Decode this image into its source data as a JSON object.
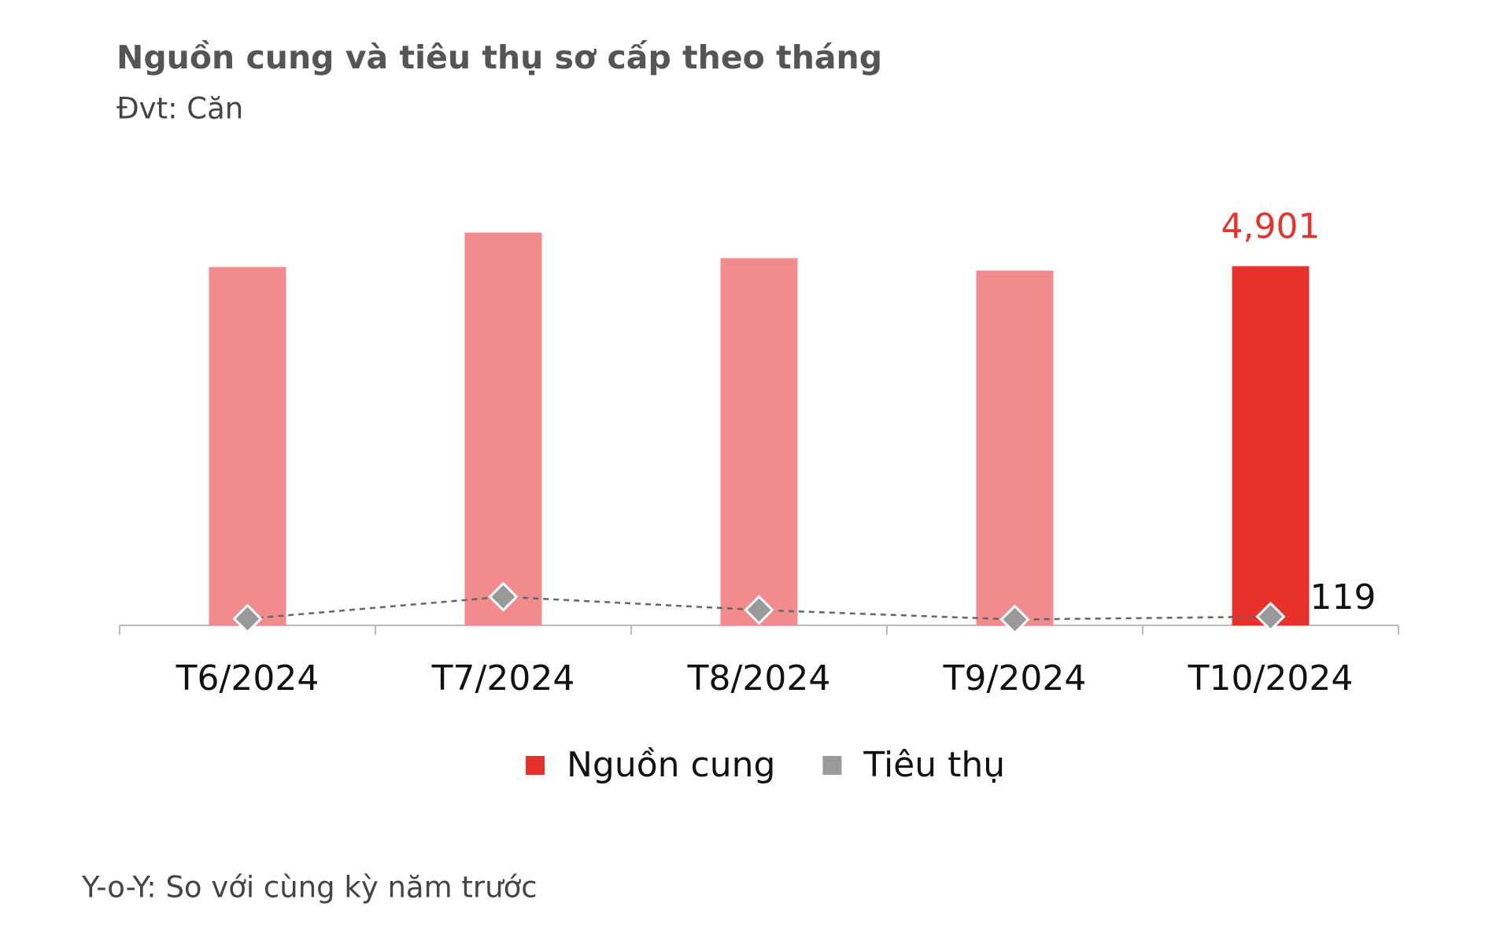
{
  "chart_data": {
    "type": "bar",
    "title": "Nguồn cung và tiêu thụ sơ cấp theo tháng",
    "subtitle": "Đvt: Căn",
    "note": "Y-o-Y: So với cùng kỳ năm trước",
    "categories": [
      "T6/2024",
      "T7/2024",
      "T8/2024",
      "T9/2024",
      "T10/2024"
    ],
    "ylim": [
      0,
      6000
    ],
    "legend": "bottom",
    "series": [
      {
        "name": "Nguồn cung",
        "type": "bar",
        "color": "#e8312a",
        "colors": [
          "#f28b8e",
          "#f28b8e",
          "#f28b8e",
          "#f28b8e",
          "#e8312a"
        ],
        "values": [
          4890,
          5360,
          5010,
          4840,
          4901
        ],
        "value_labels": [
          null,
          null,
          null,
          null,
          "4,901"
        ]
      },
      {
        "name": "Tiêu thụ",
        "type": "line",
        "color": "#999999",
        "values": [
          90,
          390,
          210,
          80,
          119
        ],
        "value_labels": [
          null,
          null,
          null,
          null,
          "119"
        ]
      }
    ]
  }
}
